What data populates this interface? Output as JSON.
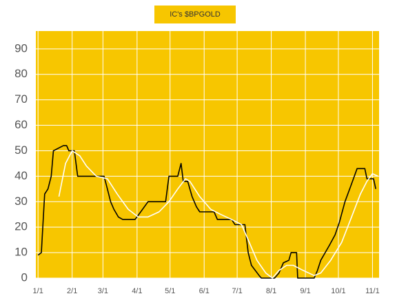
{
  "chart_data": {
    "type": "line",
    "title": "IC's $BPGOLD",
    "background": "#f7c600",
    "grid": true,
    "grid_color": "#ffffff",
    "xlim": [
      -2,
      310
    ],
    "xticks": [
      {
        "value": 0,
        "label": "1/1"
      },
      {
        "value": 31,
        "label": "2/1"
      },
      {
        "value": 59,
        "label": "3/1"
      },
      {
        "value": 90,
        "label": "4/1"
      },
      {
        "value": 120,
        "label": "5/1"
      },
      {
        "value": 151,
        "label": "6/1"
      },
      {
        "value": 181,
        "label": "7/1"
      },
      {
        "value": 212,
        "label": "8/1"
      },
      {
        "value": 243,
        "label": "9/1"
      },
      {
        "value": 273,
        "label": "10/1"
      },
      {
        "value": 304,
        "label": "11/1"
      }
    ],
    "ylim": [
      0,
      97
    ],
    "yticks": [
      0,
      10,
      20,
      30,
      40,
      50,
      60,
      70,
      80,
      90
    ],
    "series": [
      {
        "color": "#000000",
        "x": [
          0,
          3,
          6,
          9,
          12,
          14,
          23,
          26,
          28,
          33,
          36,
          60,
          63,
          66,
          69,
          73,
          77,
          88,
          90,
          100,
          116,
          119,
          127,
          130,
          132,
          136,
          140,
          144,
          147,
          160,
          163,
          176,
          179,
          188,
          191,
          194,
          201,
          203,
          215,
          219,
          223,
          228,
          230,
          235,
          236,
          251,
          254,
          257,
          261,
          265,
          270,
          274,
          279,
          285,
          290,
          297,
          299,
          305,
          307
        ],
        "values": [
          9,
          10,
          33,
          35,
          40,
          50,
          52,
          52,
          50,
          50,
          40,
          40,
          35,
          30,
          27,
          24,
          23,
          23,
          24,
          30,
          30,
          40,
          40,
          45,
          38,
          38,
          32,
          28,
          26,
          26,
          23,
          23,
          21,
          21,
          10,
          5,
          1,
          0,
          0,
          2,
          6,
          7,
          10,
          10,
          0,
          0,
          3,
          7,
          10,
          13,
          17,
          22,
          30,
          37,
          43,
          43,
          39,
          39,
          35
        ]
      },
      {
        "color": "#ffffff",
        "x": [
          19,
          25,
          31,
          38,
          44,
          53,
          63,
          72,
          82,
          91,
          100,
          110,
          119,
          127,
          134,
          138,
          147,
          157,
          166,
          176,
          185,
          191,
          199,
          207,
          213,
          219,
          226,
          232,
          241,
          251,
          257,
          266,
          276,
          285,
          293,
          299,
          304,
          309
        ],
        "values": [
          32,
          45,
          50,
          48,
          44,
          40,
          39,
          33,
          27,
          24,
          24,
          26,
          30,
          35,
          39,
          38,
          32,
          27,
          25,
          23,
          21,
          15,
          7,
          2,
          0,
          3,
          5,
          5,
          3,
          1,
          2,
          7,
          14,
          24,
          33,
          38,
          41,
          40
        ]
      }
    ]
  }
}
